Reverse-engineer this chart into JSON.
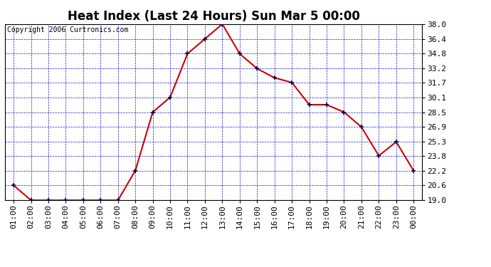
{
  "title": "Heat Index (Last 24 Hours) Sun Mar 5 00:00",
  "copyright": "Copyright 2006 Curtronics.com",
  "x_labels": [
    "01:00",
    "02:00",
    "03:00",
    "04:00",
    "05:00",
    "06:00",
    "07:00",
    "08:00",
    "09:00",
    "10:00",
    "11:00",
    "12:00",
    "13:00",
    "14:00",
    "15:00",
    "16:00",
    "17:00",
    "18:00",
    "19:00",
    "20:00",
    "21:00",
    "22:00",
    "23:00",
    "00:00"
  ],
  "y_values": [
    20.6,
    19.0,
    19.0,
    19.0,
    19.0,
    19.0,
    19.0,
    22.2,
    28.5,
    30.1,
    34.8,
    36.4,
    38.0,
    34.8,
    33.2,
    32.2,
    31.7,
    29.3,
    29.3,
    28.5,
    26.9,
    23.8,
    25.3,
    22.2
  ],
  "ylim_min": 19.0,
  "ylim_max": 38.0,
  "yticks": [
    19.0,
    20.6,
    22.2,
    23.8,
    25.3,
    26.9,
    28.5,
    30.1,
    31.7,
    33.2,
    34.8,
    36.4,
    38.0
  ],
  "line_color": "#cc0000",
  "marker_color": "#000044",
  "fig_bg_color": "#ffffff",
  "plot_bg_color": "#ffffff",
  "grid_color": "#0000cc",
  "title_color": "#000000",
  "copyright_color": "#000000",
  "border_color": "#000000",
  "title_fontsize": 12,
  "tick_fontsize": 8,
  "copyright_fontsize": 7
}
